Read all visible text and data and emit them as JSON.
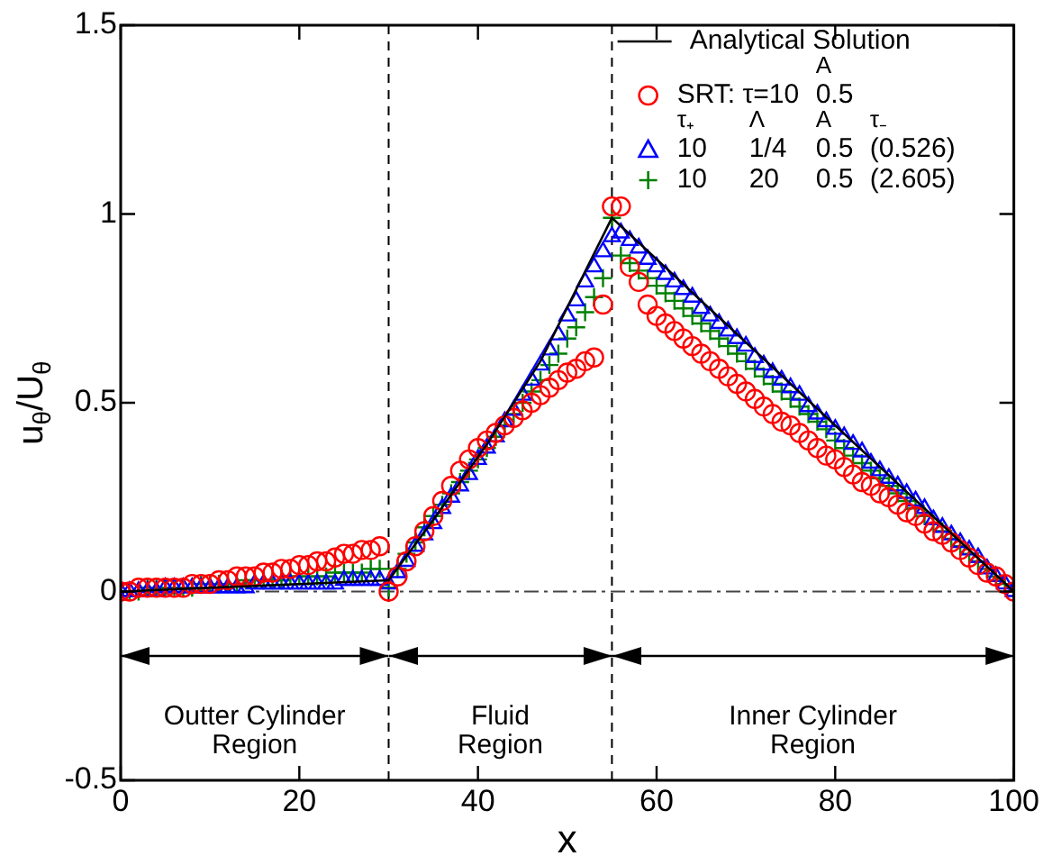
{
  "chart_data": {
    "type": "scatter",
    "xlabel": "x",
    "ylabel": "u$_{θ}$/U$_{θ}$",
    "xlim": [
      0,
      100
    ],
    "ylim": [
      -0.5,
      1.5
    ],
    "xticks": [
      0,
      20,
      40,
      60,
      80,
      100
    ],
    "yticks": [
      -0.5,
      0,
      0.5,
      1,
      1.5
    ],
    "grid": false,
    "legend": "top right",
    "x": [
      0,
      1,
      2,
      3,
      4,
      5,
      6,
      7,
      8,
      9,
      10,
      11,
      12,
      13,
      14,
      15,
      16,
      17,
      18,
      19,
      20,
      21,
      22,
      23,
      24,
      25,
      26,
      27,
      28,
      29,
      30,
      31,
      32,
      33,
      34,
      35,
      36,
      37,
      38,
      39,
      40,
      41,
      42,
      43,
      44,
      45,
      46,
      47,
      48,
      49,
      50,
      51,
      52,
      53,
      54,
      55,
      56,
      57,
      58,
      59,
      60,
      61,
      62,
      63,
      64,
      65,
      66,
      67,
      68,
      69,
      70,
      71,
      72,
      73,
      74,
      75,
      76,
      77,
      78,
      79,
      80,
      81,
      82,
      83,
      84,
      85,
      86,
      87,
      88,
      89,
      90,
      91,
      92,
      93,
      94,
      95,
      96,
      97,
      98,
      99,
      100
    ],
    "series": [
      {
        "name": "Analytical Solution",
        "type": "line",
        "marker": "none",
        "color": "#000000",
        "x": [
          0,
          30,
          35,
          41,
          47,
          55,
          100
        ],
        "values": [
          0,
          0.03,
          0.19,
          0.39,
          0.61,
          0.99,
          0
        ]
      },
      {
        "name": "SRT: τ=10  0.5",
        "marker": "circle",
        "color": "#ff0000",
        "values": [
          0,
          0,
          0.01,
          0.01,
          0.01,
          0.01,
          0.01,
          0.01,
          0.02,
          0.02,
          0.02,
          0.03,
          0.03,
          0.04,
          0.04,
          0.04,
          0.05,
          0.05,
          0.06,
          0.06,
          0.07,
          0.07,
          0.08,
          0.08,
          0.09,
          0.1,
          0.1,
          0.11,
          0.11,
          0.12,
          0,
          0.04,
          0.08,
          0.12,
          0.16,
          0.2,
          0.24,
          0.28,
          0.32,
          0.35,
          0.38,
          0.4,
          0.42,
          0.44,
          0.46,
          0.48,
          0.5,
          0.52,
          0.54,
          0.56,
          0.58,
          0.59,
          0.61,
          0.62,
          0.76,
          1.02,
          1.02,
          0.86,
          0.82,
          0.76,
          0.73,
          0.71,
          0.69,
          0.67,
          0.65,
          0.63,
          0.61,
          0.59,
          0.57,
          0.55,
          0.53,
          0.51,
          0.49,
          0.47,
          0.45,
          0.44,
          0.42,
          0.4,
          0.38,
          0.36,
          0.35,
          0.33,
          0.31,
          0.29,
          0.28,
          0.26,
          0.25,
          0.23,
          0.21,
          0.2,
          0.18,
          0.16,
          0.15,
          0.13,
          0.11,
          0.09,
          0.07,
          0.05,
          0.04,
          0.02,
          0
        ]
      },
      {
        "name": "10  1/4  0.5  (0.526)",
        "marker": "triangle",
        "color": "#0000ff",
        "values": [
          0,
          0,
          0,
          0,
          0,
          0.01,
          0.01,
          0.01,
          0.01,
          0.01,
          0.01,
          0.01,
          0.01,
          0.01,
          0.01,
          0.02,
          0.02,
          0.02,
          0.02,
          0.02,
          0.02,
          0.02,
          0.02,
          0.02,
          0.02,
          0.03,
          0.03,
          0.03,
          0.03,
          0.03,
          0.02,
          0.05,
          0.08,
          0.12,
          0.15,
          0.18,
          0.22,
          0.25,
          0.28,
          0.31,
          0.35,
          0.38,
          0.41,
          0.45,
          0.48,
          0.52,
          0.56,
          0.6,
          0.64,
          0.68,
          0.73,
          0.77,
          0.82,
          0.86,
          0.9,
          0.94,
          0.95,
          0.93,
          0.91,
          0.88,
          0.86,
          0.84,
          0.82,
          0.8,
          0.78,
          0.75,
          0.73,
          0.71,
          0.69,
          0.67,
          0.65,
          0.62,
          0.6,
          0.58,
          0.56,
          0.54,
          0.52,
          0.49,
          0.47,
          0.45,
          0.43,
          0.41,
          0.39,
          0.37,
          0.34,
          0.32,
          0.3,
          0.28,
          0.26,
          0.24,
          0.22,
          0.19,
          0.17,
          0.15,
          0.13,
          0.11,
          0.09,
          0.06,
          0.04,
          0.02,
          0
        ]
      },
      {
        "name": "10  20  0.5  (2.605)",
        "marker": "cross",
        "color": "#008000",
        "values": [
          0,
          0,
          0,
          0.01,
          0.01,
          0.01,
          0.01,
          0.01,
          0.01,
          0.02,
          0.02,
          0.02,
          0.02,
          0.02,
          0.03,
          0.03,
          0.03,
          0.03,
          0.03,
          0.04,
          0.04,
          0.04,
          0.04,
          0.04,
          0.05,
          0.05,
          0.05,
          0.05,
          0.06,
          0.06,
          0.01,
          0.06,
          0.1,
          0.13,
          0.17,
          0.2,
          0.23,
          0.26,
          0.29,
          0.32,
          0.35,
          0.38,
          0.41,
          0.44,
          0.47,
          0.5,
          0.53,
          0.56,
          0.6,
          0.63,
          0.67,
          0.7,
          0.74,
          0.78,
          0.83,
          0.99,
          0.89,
          0.87,
          0.85,
          0.83,
          0.81,
          0.79,
          0.77,
          0.75,
          0.73,
          0.71,
          0.69,
          0.67,
          0.65,
          0.63,
          0.61,
          0.59,
          0.57,
          0.55,
          0.53,
          0.51,
          0.49,
          0.47,
          0.45,
          0.43,
          0.4,
          0.38,
          0.36,
          0.34,
          0.32,
          0.3,
          0.28,
          0.26,
          0.24,
          0.22,
          0.2,
          0.18,
          0.16,
          0.14,
          0.12,
          0.1,
          0.08,
          0.06,
          0.04,
          0.02,
          0
        ]
      }
    ],
    "ref_lines": [
      {
        "axis": "x",
        "value": 30,
        "line_style": "dashed",
        "color": "#000000"
      },
      {
        "axis": "x",
        "value": 55,
        "line_style": "dashed",
        "color": "#000000"
      },
      {
        "axis": "y",
        "value": 0,
        "line_style": "dashed",
        "color": "#444444"
      }
    ],
    "annotations": [
      "A",
      "τ₊  Λ  A  τ₋",
      "Outter Cylinder Region",
      "Fluid Region",
      "Inner Cylinder Region"
    ]
  }
}
